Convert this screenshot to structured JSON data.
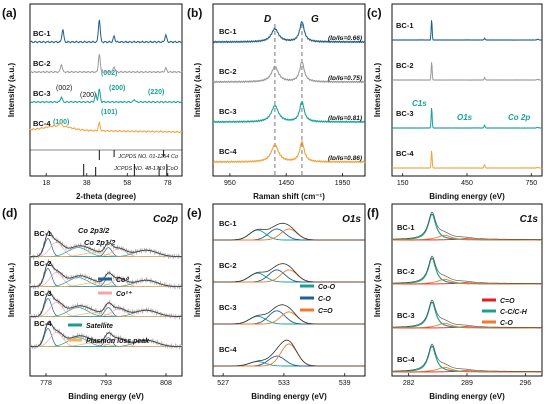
{
  "colors": {
    "BC-1": "#1f5f8b",
    "BC-2": "#9a9a9a",
    "BC-3": "#17a398",
    "BC-4": "#f2a33a",
    "axis": "#111111",
    "co0": "#1f5f9a",
    "co2": "#f4a6a6",
    "satellite": "#1f9b8e",
    "plasmon": "#f2b45c",
    "c_eq_o": "#e01e1e",
    "cc_ch": "#19a08e",
    "c_o": "#f07a2a",
    "co_o": "#19a08e",
    "o1_c_o": "#1f5f9a",
    "o1_c_eq_o": "#f07a2a"
  },
  "samples": [
    "BC-1",
    "BC-2",
    "BC-3",
    "BC-4"
  ],
  "chart_data": [
    {
      "panel": "(a)",
      "type": "line",
      "xlabel": "2-theta (degree)",
      "ylabel": "Intensity (a.u.)",
      "xticks": [
        "18",
        "38",
        "58",
        "78"
      ],
      "xlim": [
        10,
        85
      ],
      "reference_labels": [
        "JCPDS NO. 01-1254  Co",
        "JCPDS NO. 48-1719  CoO"
      ],
      "reference_lines": {
        "Co": [
          44.2,
          51.5,
          75.9
        ],
        "CoO": [
          36.5,
          42.4,
          61.5,
          73.7,
          77.5
        ]
      },
      "annotations_bc2": [
        "(002)",
        "(200)",
        "(002)",
        "(200)",
        "(220)"
      ],
      "annotations_bc3": [
        "(100)",
        "(101)"
      ],
      "series": [
        {
          "name": "BC-1",
          "peaks": [
            [
              26.2,
              0.9
            ],
            [
              44.2,
              1.6
            ],
            [
              51.5,
              0.4
            ],
            [
              77.0,
              0.5
            ]
          ]
        },
        {
          "name": "BC-2",
          "peaks": [
            [
              25.5,
              0.6
            ],
            [
              44.2,
              1.4
            ],
            [
              51.5,
              0.4
            ],
            [
              77.0,
              0.3
            ]
          ]
        },
        {
          "name": "BC-3",
          "peaks": [
            [
              25.5,
              0.4
            ],
            [
              42.4,
              0.6
            ],
            [
              44.2,
              1.0
            ],
            [
              61.5,
              0.2
            ]
          ]
        },
        {
          "name": "BC-4",
          "peaks": [
            [
              25.0,
              0.3
            ],
            [
              44.2,
              0.6
            ]
          ]
        }
      ]
    },
    {
      "panel": "(b)",
      "type": "line",
      "xlabel": "Raman shift (cm⁻¹)",
      "ylabel": "Intensity (a.u.)",
      "xticks": [
        "950",
        "1450",
        "1950"
      ],
      "xlim": [
        800,
        2150
      ],
      "band_labels": [
        "D",
        "G"
      ],
      "bands": {
        "D": 1350,
        "G": 1590
      },
      "series": [
        {
          "name": "BC-1",
          "ID_IG": "(Iᴅ/Iɢ=0.66)",
          "ratio": 0.66
        },
        {
          "name": "BC-2",
          "ID_IG": "(Iᴅ/Iɢ=0.75)",
          "ratio": 0.75
        },
        {
          "name": "BC-3",
          "ID_IG": "(Iᴅ/Iɢ=0.81)",
          "ratio": 0.81
        },
        {
          "name": "BC-4",
          "ID_IG": "(Iᴅ/Iɢ=0.86)",
          "ratio": 0.86
        }
      ]
    },
    {
      "panel": "(c)",
      "type": "line",
      "xlabel": "Binding energy  (eV)",
      "ylabel": "Intensity (a.u.)",
      "xticks": [
        "150",
        "450",
        "750"
      ],
      "xlim": [
        100,
        800
      ],
      "annotations": [
        "C1s",
        "O1s",
        "Co 2p"
      ],
      "peaks": {
        "C1s": 285,
        "O1s": 532,
        "Co2p": 780
      },
      "series": [
        {
          "name": "BC-1",
          "c1s": 1.9,
          "o1s": 0.15
        },
        {
          "name": "BC-2",
          "c1s": 1.7,
          "o1s": 0.2
        },
        {
          "name": "BC-3",
          "c1s": 1.9,
          "o1s": 0.25
        },
        {
          "name": "BC-4",
          "c1s": 1.6,
          "o1s": 0.3
        }
      ]
    },
    {
      "panel": "(d)",
      "type": "line",
      "title": "Co2p",
      "xlabel": "Binding energy  (eV)",
      "ylabel": "Intensity (a.u.)",
      "xticks": [
        "778",
        "793",
        "808"
      ],
      "xlim": [
        774,
        812
      ],
      "annotations": [
        "Co 2p3/2",
        "Co 2p1/2"
      ],
      "legend": [
        "Co⁰",
        "Co²⁺",
        "Satellite",
        "Plasmon loss peak"
      ],
      "series": [
        {
          "name": "BC-1"
        },
        {
          "name": "BC-2"
        },
        {
          "name": "BC-3"
        },
        {
          "name": "BC-4"
        }
      ]
    },
    {
      "panel": "(e)",
      "type": "line",
      "title": "O1s",
      "xlabel": "Binding energy  (eV)",
      "ylabel": "Intensity (a.u.)",
      "xticks": [
        "527",
        "533",
        "539"
      ],
      "xlim": [
        526,
        541
      ],
      "legend": [
        "Co-O",
        "C-O",
        "C=O"
      ],
      "series": [
        {
          "name": "BC-1"
        },
        {
          "name": "BC-2"
        },
        {
          "name": "BC-3"
        },
        {
          "name": "BC-4"
        }
      ]
    },
    {
      "panel": "(f)",
      "type": "line",
      "title": "C1s",
      "xlabel": "Binding energy  (eV)",
      "ylabel": "Intensity (a.u.)",
      "xticks": [
        "282",
        "289",
        "296"
      ],
      "xlim": [
        280,
        298
      ],
      "legend": [
        "C=O",
        "C-C/C-H",
        "C-O"
      ],
      "series": [
        {
          "name": "BC-1"
        },
        {
          "name": "BC-2"
        },
        {
          "name": "BC-3"
        },
        {
          "name": "BC-4"
        }
      ]
    }
  ]
}
